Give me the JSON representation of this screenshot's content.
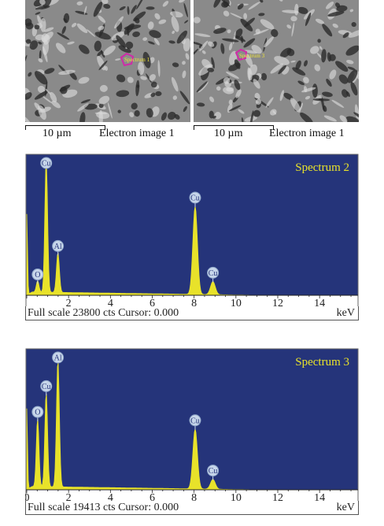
{
  "sem_images": [
    {
      "spectrum_label": "Spectrum 1",
      "scale_label": "10 µm",
      "image_label": "Electron image 1",
      "marker_color": "#d02aa8"
    },
    {
      "spectrum_label": "Spectrum 3",
      "scale_label": "10 µm",
      "image_label": "Electron image 1",
      "marker_color": "#d02aa8"
    }
  ],
  "colors": {
    "background": "#25347a",
    "spectrum": "#e8e22a",
    "title": "#e8e22a",
    "peak_label_fill": "#c7d6ea"
  },
  "chart_data": [
    {
      "type": "line",
      "title": "Spectrum 2",
      "xlabel": "keV",
      "xlim": [
        0,
        15.8
      ],
      "x_ticks": [
        2,
        4,
        6,
        8,
        10,
        12,
        14
      ],
      "tick_labels": [
        "2",
        "4",
        "6",
        "8",
        "10",
        "12",
        "14"
      ],
      "full_scale_cts": 23800,
      "cursor": "0.000",
      "footer": "Full scale 23800 cts Cursor: 0.000",
      "peaks": [
        {
          "element": "O",
          "kev": 0.52,
          "height": 2000
        },
        {
          "element": "Cu",
          "kev": 0.93,
          "height": 23400
        },
        {
          "element": "Al",
          "kev": 1.49,
          "height": 7000
        },
        {
          "element": "Cu",
          "kev": 8.05,
          "height": 15500
        },
        {
          "element": "Cu",
          "kev": 8.9,
          "height": 2300
        }
      ]
    },
    {
      "type": "line",
      "title": "Spectrum 3",
      "xlabel": "keV",
      "xlim": [
        0,
        15.8
      ],
      "x_ticks": [
        0,
        2,
        4,
        6,
        8,
        10,
        12,
        14
      ],
      "tick_labels": [
        "0",
        "2",
        "4",
        "6",
        "8",
        "10",
        "12",
        "14"
      ],
      "full_scale_cts": 19413,
      "cursor": "0.000",
      "footer": "Full scale 19413 cts Cursor: 0.000",
      "peaks": [
        {
          "element": "O",
          "kev": 0.52,
          "height": 9800
        },
        {
          "element": "Cu",
          "kev": 0.93,
          "height": 13500
        },
        {
          "element": "Al",
          "kev": 1.49,
          "height": 18200
        },
        {
          "element": "Cu",
          "kev": 8.05,
          "height": 8600
        },
        {
          "element": "Cu",
          "kev": 8.9,
          "height": 1400
        }
      ]
    }
  ]
}
